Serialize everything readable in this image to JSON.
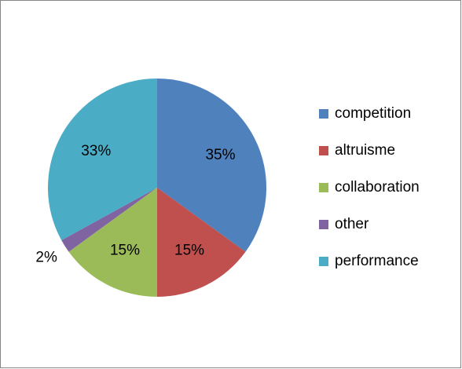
{
  "chart_data": {
    "type": "pie",
    "categories": [
      "competition",
      "altruisme",
      "collaboration",
      "other",
      "performance"
    ],
    "values": [
      35,
      15,
      15,
      2,
      33
    ],
    "value_labels": [
      "35%",
      "15%",
      "15%",
      "2%",
      "33%"
    ],
    "colors": [
      "#4f81bd",
      "#c0504d",
      "#9bbb59",
      "#8064a2",
      "#4bacc6"
    ],
    "legend": "right"
  }
}
